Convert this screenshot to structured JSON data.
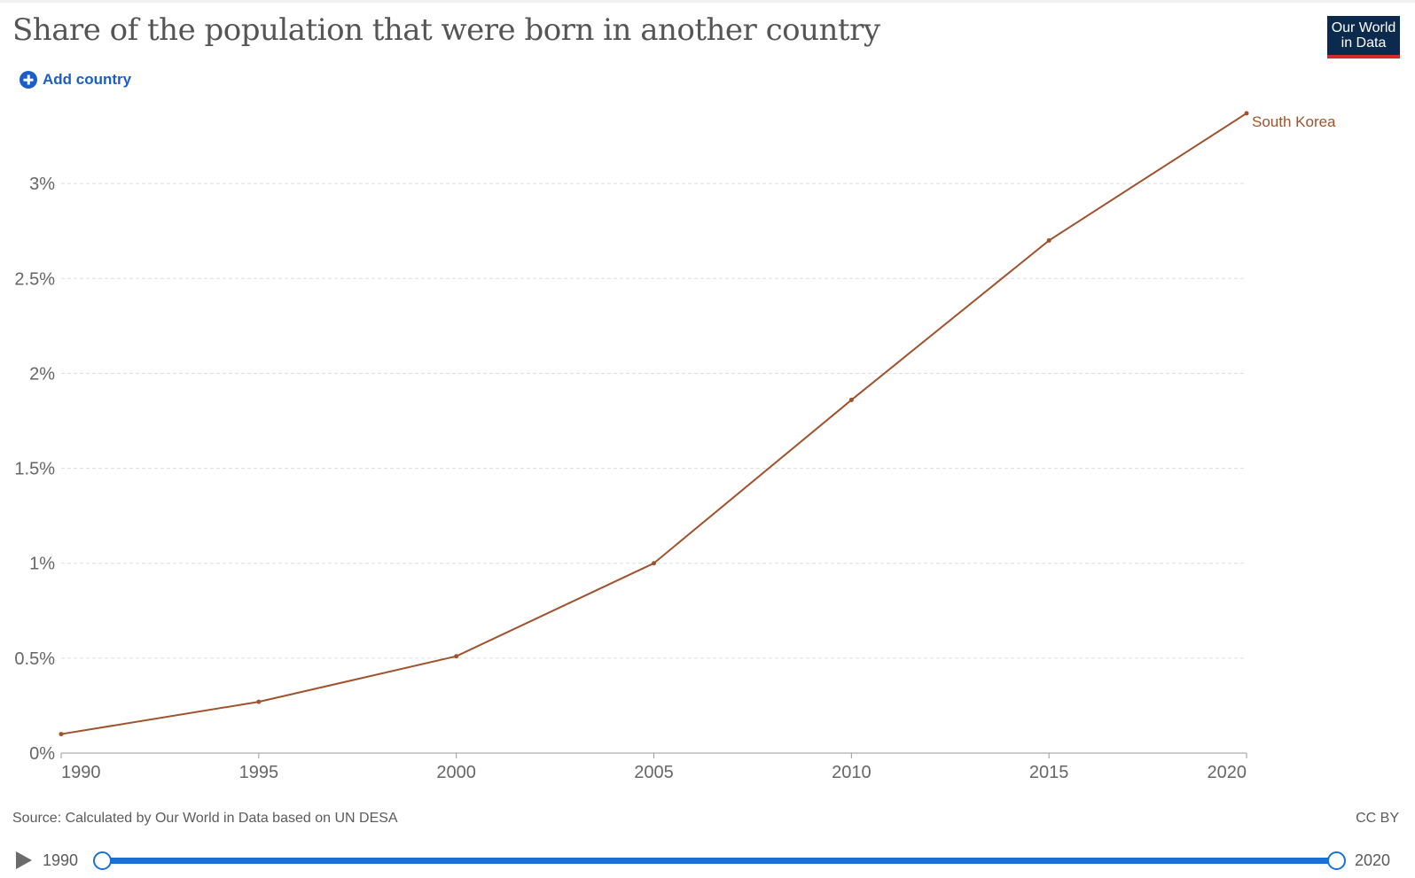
{
  "header": {
    "title": "Share of the population that were born in another country",
    "add_country_label": "Add country"
  },
  "logo": {
    "line1": "Our World",
    "line2": "in Data"
  },
  "footer": {
    "source": "Source: Calculated by Our World in Data based on UN DESA",
    "license": "CC BY"
  },
  "timeline": {
    "start_label": "1990",
    "end_label": "2020",
    "start_value": 1990,
    "end_value": 2020
  },
  "colors": {
    "series": "#a0522d",
    "accent": "#1a6fd8",
    "logo_bg": "#0b2a4d",
    "logo_bar": "#d42a2a"
  },
  "chart_data": {
    "type": "line",
    "title": "Share of the population that were born in another country",
    "xlabel": "",
    "ylabel": "",
    "x": [
      1990,
      1995,
      2000,
      2005,
      2010,
      2015,
      2020
    ],
    "series": [
      {
        "name": "South Korea",
        "values": [
          0.1,
          0.27,
          0.51,
          1.0,
          1.86,
          2.7,
          3.37
        ]
      }
    ],
    "xlim": [
      1990,
      2020
    ],
    "ylim": [
      0,
      3.5
    ],
    "x_ticks": [
      1990,
      1995,
      2000,
      2005,
      2010,
      2015,
      2020
    ],
    "x_tick_labels": [
      "1990",
      "1995",
      "2000",
      "2005",
      "2010",
      "2015",
      "2020"
    ],
    "y_ticks": [
      0,
      0.5,
      1,
      1.5,
      2,
      2.5,
      3
    ],
    "y_tick_labels": [
      "0%",
      "0.5%",
      "1%",
      "1.5%",
      "2%",
      "2.5%",
      "3%"
    ],
    "grid": true,
    "legend": "end-of-line label"
  }
}
